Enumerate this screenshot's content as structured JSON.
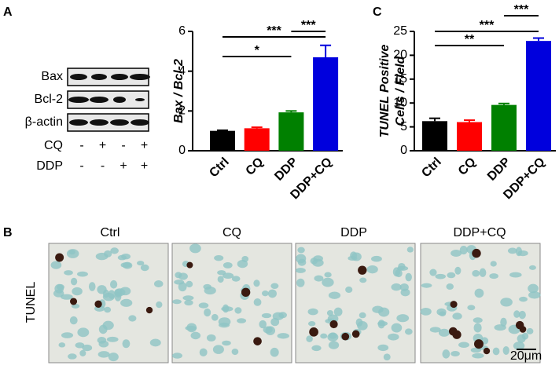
{
  "panel_labels": [
    "A",
    "B",
    "C"
  ],
  "blot": {
    "proteins": [
      "Bax",
      "Bcl-2",
      "β-actin"
    ],
    "treatments": [
      {
        "name": "CQ",
        "marks": [
          "-",
          "+",
          "-",
          "+"
        ]
      },
      {
        "name": "DDP",
        "marks": [
          "-",
          "-",
          "+",
          "+"
        ]
      }
    ]
  },
  "chart_data": [
    {
      "type": "bar",
      "ylabel": "Bax / Bcl-2",
      "categories": [
        "Ctrl",
        "CQ",
        "DDP",
        "DDP+CQ"
      ],
      "values": [
        1.0,
        1.13,
        1.93,
        4.7
      ],
      "errors": [
        0.03,
        0.05,
        0.07,
        0.6
      ],
      "colors": [
        "#000000",
        "#ff0000",
        "#008000",
        "#0000dd"
      ],
      "ylim": [
        0,
        6
      ],
      "yticks": [
        0,
        2,
        4,
        6
      ],
      "annotations": [
        "*",
        "***",
        "***"
      ]
    },
    {
      "type": "bar",
      "ylabel": [
        "TUNEL Positive",
        "Cells / Field"
      ],
      "categories": [
        "Ctrl",
        "CQ",
        "DDP",
        "DDP+CQ"
      ],
      "values": [
        6.2,
        6.0,
        9.6,
        23.0
      ],
      "errors": [
        0.6,
        0.4,
        0.3,
        0.6
      ],
      "colors": [
        "#000000",
        "#ff0000",
        "#008000",
        "#0000dd"
      ],
      "ylim": [
        0,
        25
      ],
      "yticks": [
        0,
        5,
        10,
        15,
        20,
        25
      ],
      "annotations": [
        "**",
        "***",
        "***"
      ]
    }
  ],
  "micrographs": {
    "row_label": "TUNEL",
    "columns": [
      "Ctrl",
      "CQ",
      "DDP",
      "DDP+CQ"
    ],
    "scale_bar": "20μm"
  }
}
